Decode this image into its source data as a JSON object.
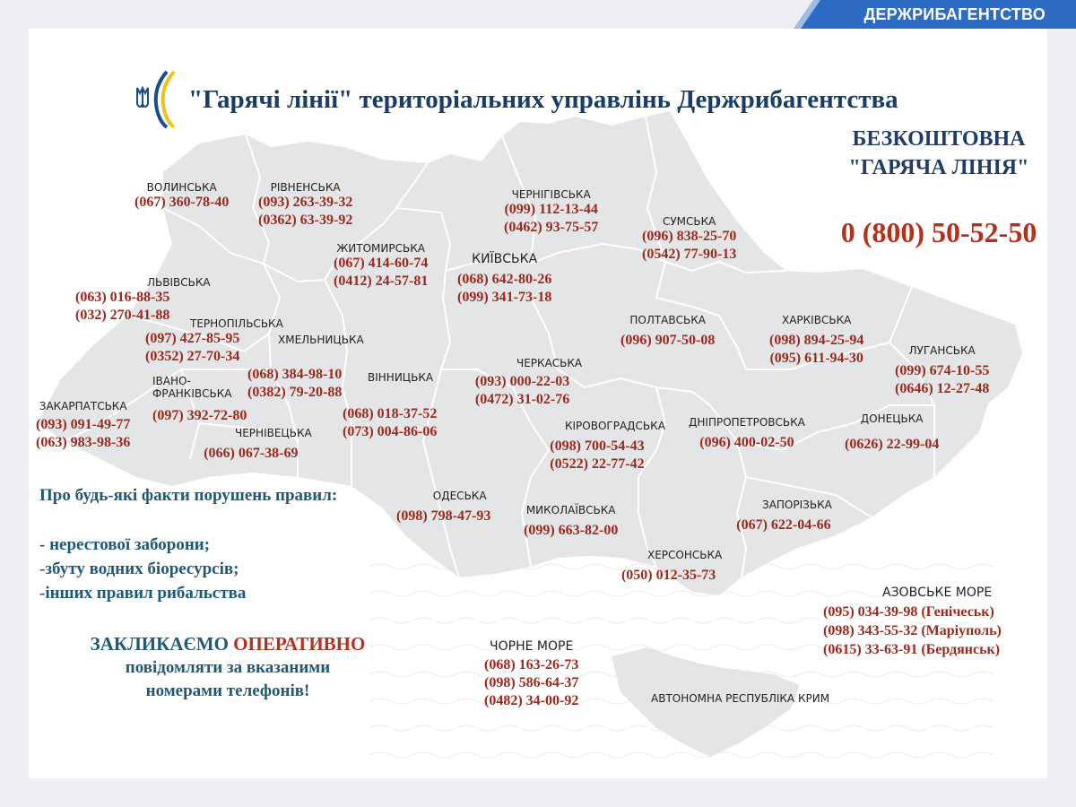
{
  "banner": {
    "label": "ДЕРЖРИБАГЕНТСТВО"
  },
  "title": "\"Гарячі лінії\" територіальних управлінь Держрибагентства",
  "hotline": {
    "line1": "БЕЗКОШТОВНА",
    "line2": "\"ГАРЯЧА ЛІНІЯ\"",
    "number": "0 (800) 50-52-50"
  },
  "colors": {
    "title": "#173e6a",
    "phone": "#9a2a1e",
    "accent": "#b6311d",
    "note": "#1e5a78",
    "map": "#e4e5e7",
    "banner": "#2d6bc4"
  },
  "regions": [
    {
      "id": "volynska",
      "name": "ВОЛИНСЬКА",
      "phones": [
        "(067) 360-78-40"
      ]
    },
    {
      "id": "rivnenska",
      "name": "РІВНЕНСЬКА",
      "phones": [
        "(093) 263-39-32",
        "(0362) 63-39-92"
      ]
    },
    {
      "id": "chernihivska",
      "name": "ЧЕРНІГІВСЬКА",
      "phones": [
        "(099) 112-13-44",
        "(0462) 93-75-57"
      ]
    },
    {
      "id": "sumska",
      "name": "СУМСЬКА",
      "phones": [
        "(096) 838-25-70",
        "(0542) 77-90-13"
      ]
    },
    {
      "id": "zhytomyrska",
      "name": "ЖИТОМИРСЬКА",
      "phones": [
        "(067) 414-60-74",
        "(0412) 24-57-81"
      ]
    },
    {
      "id": "kyivska",
      "name": "КИЇВСЬКА",
      "phones": [
        "(068) 642-80-26",
        "(099) 341-73-18"
      ]
    },
    {
      "id": "lvivska",
      "name": "ЛЬВІВСЬКА",
      "phones": [
        "(063) 016-88-35",
        "(032) 270-41-88"
      ]
    },
    {
      "id": "ternopilska",
      "name": "ТЕРНОПІЛЬСЬКА",
      "phones": [
        "(097) 427-85-95",
        "(0352) 27-70-34"
      ]
    },
    {
      "id": "khmelnytska",
      "name": "ХМЕЛЬНИЦЬКА",
      "phones": [
        "(068) 384-98-10",
        "(0382) 79-20-88"
      ]
    },
    {
      "id": "poltavska",
      "name": "ПОЛТАВСЬКА",
      "phones": [
        "(096) 907-50-08"
      ]
    },
    {
      "id": "kharkivska",
      "name": "ХАРКІВСЬКА",
      "phones": [
        "(098) 894-25-94",
        "(095) 611-94-30"
      ]
    },
    {
      "id": "luhanska",
      "name": "ЛУГАНСЬКА",
      "phones": [
        "(099) 674-10-55",
        "(0646) 12-27-48"
      ]
    },
    {
      "id": "cherkaska",
      "name": "ЧЕРКАСЬКА",
      "phones": [
        "(093) 000-22-03",
        "(0472) 31-02-76"
      ]
    },
    {
      "id": "vinnytska",
      "name": "ВІННИЦЬКА",
      "phones": [
        "(068) 018-37-52",
        "(073) 004-86-06"
      ]
    },
    {
      "id": "zakarpatska",
      "name": "ЗАКАРПАТСЬКА",
      "phones": [
        "(093) 091-49-77",
        "(063) 983-98-36"
      ]
    },
    {
      "id": "ivano",
      "name": "ІВАНО-\nФРАНКІВСЬКА",
      "name1": "ІВАНО-",
      "name2": "ФРАНКІВСЬКА",
      "phones": [
        "(097) 392-72-80"
      ]
    },
    {
      "id": "chernivetska",
      "name": "ЧЕРНІВЕЦЬКА",
      "phones": [
        "(066) 067-38-69"
      ]
    },
    {
      "id": "kirovohradska",
      "name": "КІРОВОГРАДСЬКА",
      "phones": [
        "(098) 700-54-43",
        "(0522) 22-77-42"
      ]
    },
    {
      "id": "dnipropetrovska",
      "name": "ДНІПРОПЕТРОВСЬКА",
      "phones": [
        "(096) 400-02-50"
      ]
    },
    {
      "id": "donetska",
      "name": "ДОНЕЦЬКА",
      "phones": [
        "(0626) 22-99-04"
      ]
    },
    {
      "id": "odeska",
      "name": "ОДЕСЬКА",
      "phones": [
        "(098) 798-47-93"
      ]
    },
    {
      "id": "mykolaivska",
      "name": "МИКОЛАЇВСЬКА",
      "phones": [
        "(099) 663-82-00"
      ]
    },
    {
      "id": "zaporizka",
      "name": "ЗАПОРІЗЬКА",
      "phones": [
        "(067) 622-04-66"
      ]
    },
    {
      "id": "khersonska",
      "name": "ХЕРСОНСЬКА",
      "phones": [
        "(050) 012-35-73"
      ]
    },
    {
      "id": "azov",
      "name": "АЗОВСЬКЕ МОРЕ",
      "phones": [
        "(095) 034-39-98 (Генічеськ)",
        "(098) 343-55-32 (Маріуполь)",
        "(0615) 33-63-91 (Бердянськ)"
      ]
    },
    {
      "id": "black_sea",
      "name": "ЧОРНЕ МОРЕ",
      "phones": [
        "(068) 163-26-73",
        "(098) 586-64-37",
        "(0482) 34-00-92"
      ]
    },
    {
      "id": "crimea",
      "name": "АВТОНОМНА РЕСПУБЛІКА КРИМ",
      "phones": []
    }
  ],
  "notice": {
    "title": "Про будь-які факти порушень правил:",
    "items": [
      "- нерестової заборони;",
      "-збуту водних біоресурсів;",
      "-інших правил рибальства"
    ],
    "call_part1": "ЗАКЛИКАЄМО",
    "call_highlight": "ОПЕРАТИВНО",
    "call_line2": "повідомляти за вказаними",
    "call_line3": "номерами телефонів!"
  }
}
